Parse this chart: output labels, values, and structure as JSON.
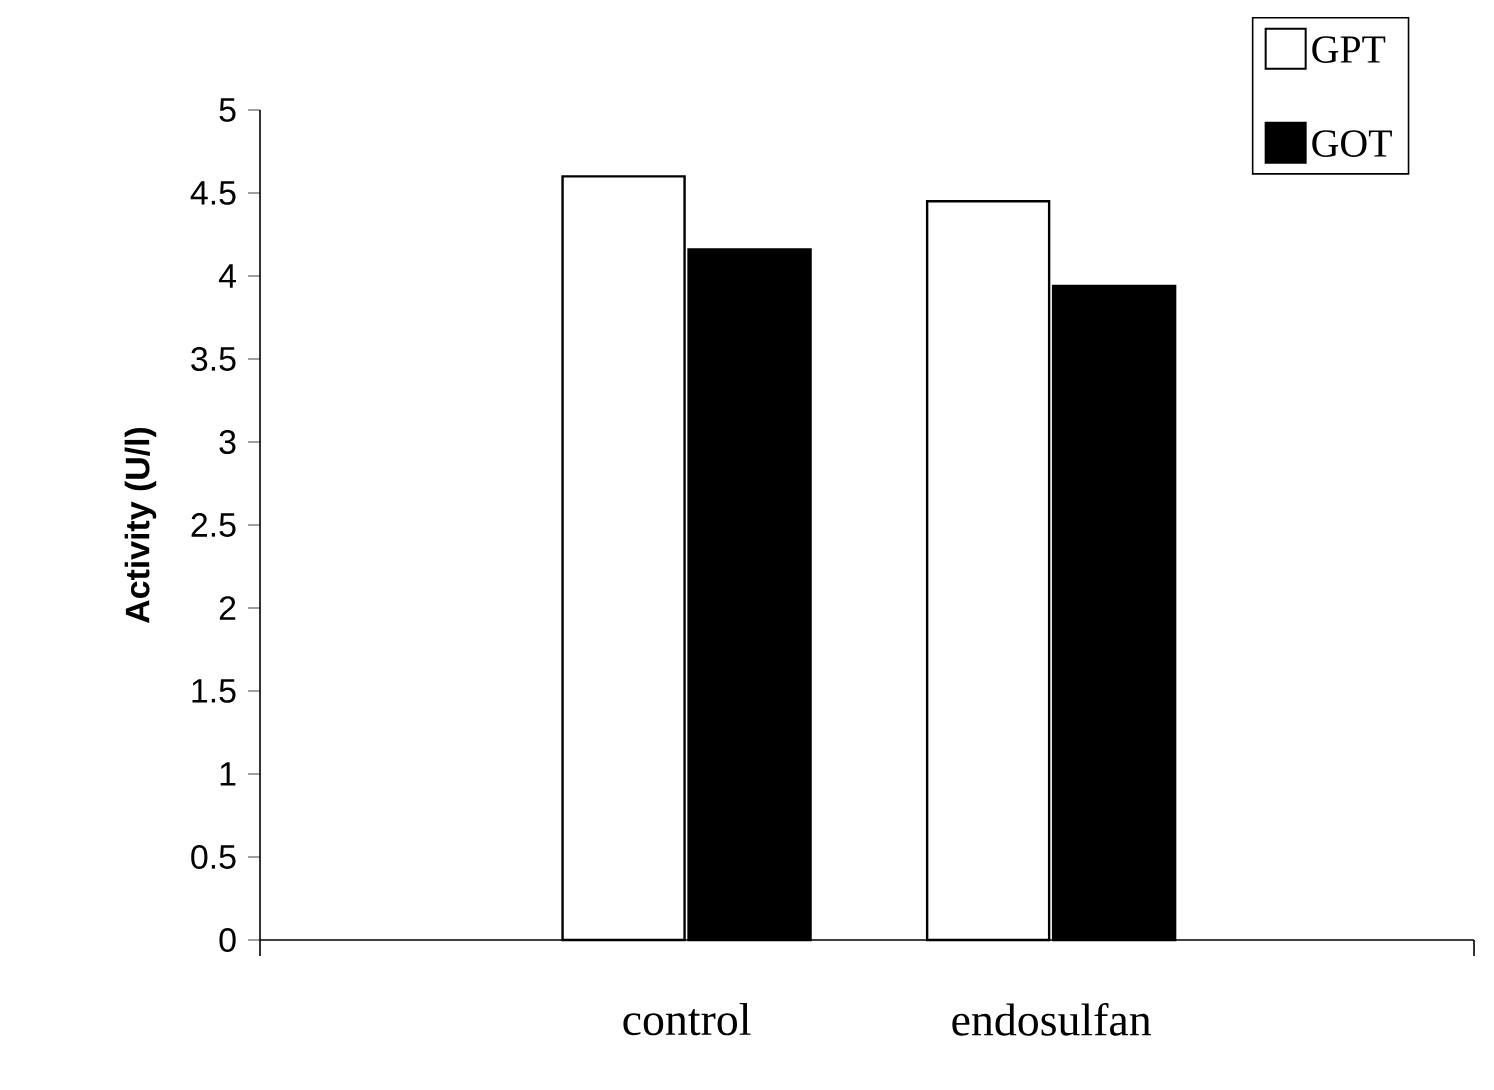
{
  "chart_data": {
    "type": "bar",
    "ylabel": "Activity (U/l)",
    "categories": [
      "control",
      "endosulfan"
    ],
    "series": [
      {
        "name": "GPT",
        "color": "#ffffff",
        "values": [
          4.6,
          4.45
        ]
      },
      {
        "name": "GOT",
        "color": "#000000",
        "values": [
          4.16,
          3.94
        ]
      }
    ],
    "ylim": [
      0,
      5
    ],
    "yticks": [
      0,
      0.5,
      1,
      1.5,
      2,
      2.5,
      3,
      3.5,
      4,
      4.5,
      5
    ],
    "legend": "top right"
  }
}
